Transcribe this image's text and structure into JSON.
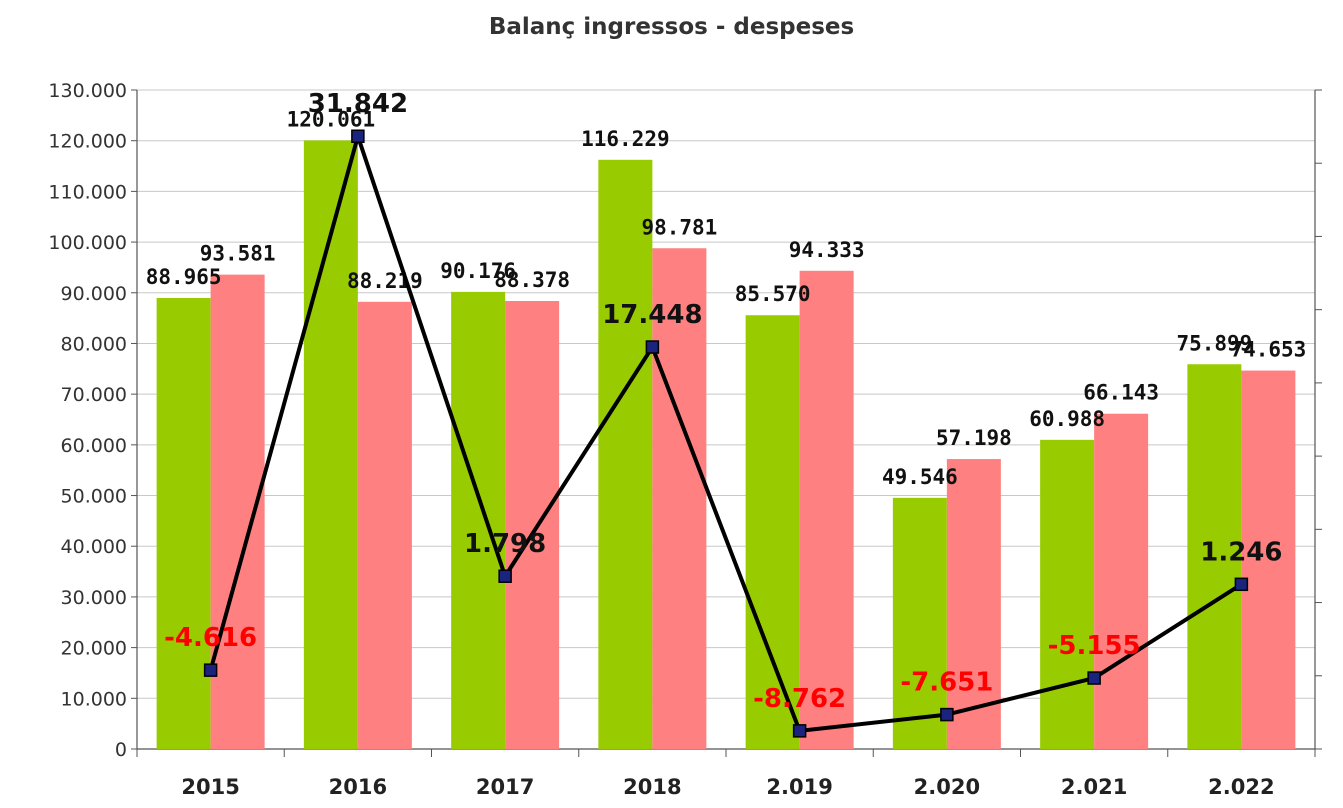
{
  "chart_data": {
    "type": "bar",
    "title": "Balanç ingressos - despeses",
    "categories": [
      "2015",
      "2016",
      "2017",
      "2018",
      "2.019",
      "2.020",
      "2.021",
      "2.022"
    ],
    "ylim": [
      0,
      130000
    ],
    "yticks": [
      "0",
      "10.000",
      "20.000",
      "30.000",
      "40.000",
      "50.000",
      "60.000",
      "70.000",
      "80.000",
      "90.000",
      "100.000",
      "110.000",
      "120.000",
      "130.000"
    ],
    "grid": true,
    "series": [
      {
        "kind": "bar",
        "color": "#99cc00",
        "values": [
          88965,
          120061,
          90176,
          116229,
          85570,
          49546,
          60988,
          75899
        ],
        "labels": [
          "88.965",
          "120.061",
          "90.176",
          "116.229",
          "85.570",
          "49.546",
          "60.988",
          "75.899"
        ]
      },
      {
        "kind": "bar",
        "color": "#ff8080",
        "values": [
          93581,
          88219,
          88378,
          98781,
          94333,
          57198,
          66143,
          74653
        ],
        "labels": [
          "93.581",
          "88.219",
          "88.378",
          "98.781",
          "94.333",
          "57.198",
          "66.143",
          "74.653"
        ]
      },
      {
        "kind": "line",
        "axis": "secondary",
        "ylim_secondary": [
          -10000,
          35000
        ],
        "color": "#000000",
        "marker_color": "#1a237e",
        "values": [
          -4616,
          31842,
          1798,
          17448,
          -8762,
          -7651,
          -5155,
          1246
        ],
        "labels": [
          "-4.616",
          "31.842",
          "1.798",
          "17.448",
          "-8.762",
          "-7.651",
          "-5.155",
          "1.246"
        ],
        "positive_label_color": "#111111",
        "negative_label_color": "#ff0000"
      }
    ]
  }
}
